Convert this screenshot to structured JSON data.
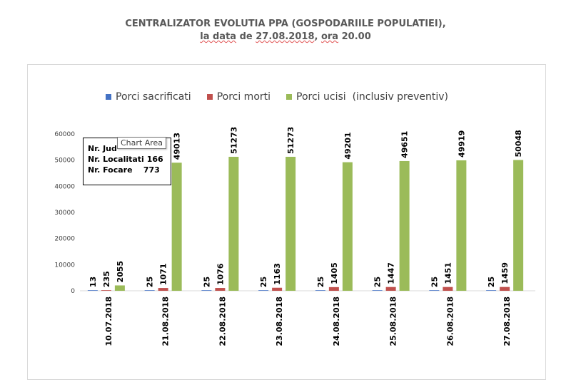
{
  "title_line1": "CENTRALIZATOR EVOLUTIA PPA (GOSPODARIILE POPULATIEI),",
  "title_line2": {
    "part1": "la data",
    "part2": " de ",
    "part3": "27.08.2018",
    "part4": ", ",
    "part5": "ora",
    "part6": " 20.00"
  },
  "colors": {
    "series1": "#4472c4",
    "series2": "#c0504d",
    "series3": "#9bbb59",
    "axis": "#d9d9d9",
    "text": "#404040"
  },
  "infobox": {
    "line1_label": "Nr. Jud",
    "line2_label": "Nr. Localitati",
    "line2_value": "166",
    "line3_label": "Nr. Focare",
    "line3_value": "773"
  },
  "tooltip": "Chart Area",
  "chart_data": {
    "type": "bar",
    "categories": [
      "10.07.2018",
      "21.08.2018",
      "22.08.2018",
      "23.08.2018",
      "24.08.2018",
      "25.08.2018",
      "26.08.2018",
      "27.08.2018"
    ],
    "series": [
      {
        "name": "Porci sacrificati",
        "values": [
          13,
          25,
          25,
          25,
          25,
          25,
          25,
          25
        ]
      },
      {
        "name": "Porci morti",
        "values": [
          235,
          1071,
          1076,
          1163,
          1405,
          1447,
          1451,
          1459
        ]
      },
      {
        "name": "Porci ucisi  (inclusiv preventiv)",
        "values": [
          2055,
          49013,
          51273,
          51273,
          49201,
          49651,
          49919,
          50048
        ]
      }
    ],
    "ylim": [
      0,
      60000
    ],
    "yticks": [
      0,
      10000,
      20000,
      30000,
      40000,
      50000,
      60000
    ],
    "legend_position": "top",
    "grid": false
  }
}
